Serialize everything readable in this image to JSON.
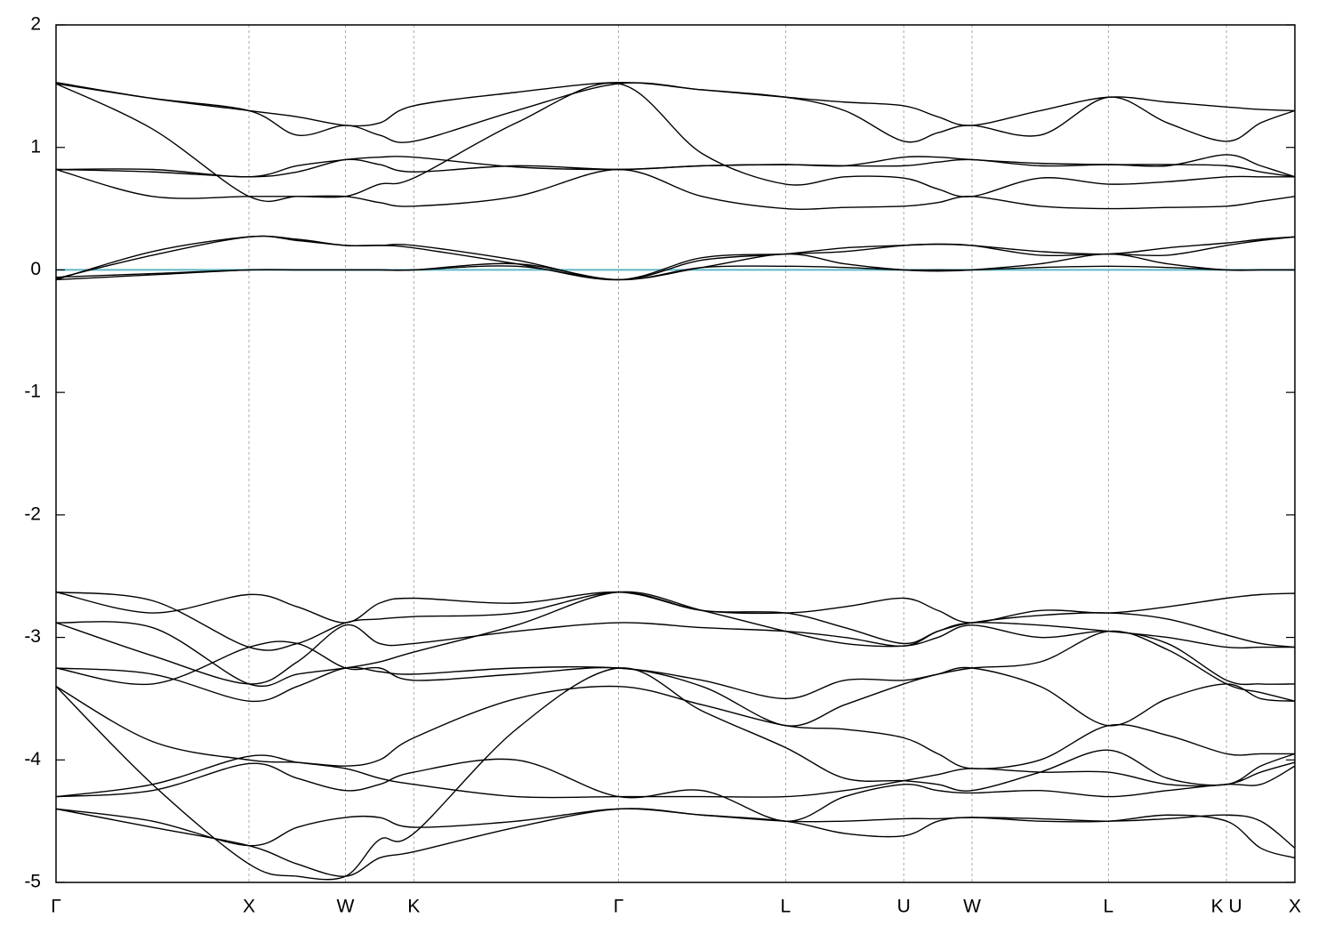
{
  "chart_data": {
    "type": "line",
    "x": [
      0,
      0.5,
      1,
      1.25,
      1.5,
      1.677,
      1.854,
      2.385,
      2.915,
      3.348,
      3.781,
      4.087,
      4.393,
      4.57,
      4.747,
      5.1,
      5.454,
      5.76,
      6.066,
      6.243,
      6.42
    ],
    "xlim": [
      0,
      6.42
    ],
    "xticks": [
      {
        "value": 0,
        "label": "Γ"
      },
      {
        "value": 1,
        "label": "X"
      },
      {
        "value": 1.5,
        "label": "W"
      },
      {
        "value": 1.854,
        "label": "K"
      },
      {
        "value": 2.915,
        "label": "Γ"
      },
      {
        "value": 3.781,
        "label": "L"
      },
      {
        "value": 4.393,
        "label": "U"
      },
      {
        "value": 4.747,
        "label": "W"
      },
      {
        "value": 5.454,
        "label": "L"
      },
      {
        "value": 6.066,
        "label": "K U"
      },
      {
        "value": 6.42,
        "label": "X"
      }
    ],
    "ylim": [
      -5,
      2
    ],
    "yticks": [
      -5,
      -4,
      -3,
      -2,
      -1,
      0,
      1,
      2
    ],
    "x_grid": true,
    "color": "#000000",
    "fermi_level": 0,
    "fermi_color": "#5fb8c8",
    "series": [
      {
        "values": [
          1.53,
          1.4,
          1.3,
          1.25,
          1.18,
          1.2,
          1.34,
          1.45,
          1.53,
          1.47,
          1.41,
          1.37,
          1.34,
          1.25,
          1.18,
          1.3,
          1.41,
          1.37,
          1.33,
          1.31,
          1.3
        ]
      },
      {
        "values": [
          1.52,
          1.15,
          0.6,
          0.6,
          0.6,
          0.7,
          0.75,
          1.2,
          1.52,
          0.95,
          0.7,
          0.76,
          0.75,
          0.66,
          0.6,
          0.75,
          0.7,
          0.72,
          0.76,
          0.76,
          0.76
        ]
      },
      {
        "values": [
          1.52,
          1.4,
          1.3,
          1.1,
          1.18,
          1.1,
          1.05,
          1.3,
          1.52,
          1.47,
          1.41,
          1.3,
          1.05,
          1.12,
          1.18,
          1.1,
          1.41,
          1.2,
          1.05,
          1.2,
          1.3
        ]
      },
      {
        "values": [
          0.82,
          0.82,
          0.76,
          0.85,
          0.9,
          0.92,
          0.92,
          0.84,
          0.82,
          0.85,
          0.86,
          0.85,
          0.92,
          0.92,
          0.9,
          0.87,
          0.86,
          0.86,
          0.85,
          0.8,
          0.76
        ]
      },
      {
        "values": [
          0.82,
          0.8,
          0.76,
          0.8,
          0.9,
          0.86,
          0.8,
          0.85,
          0.82,
          0.85,
          0.86,
          0.85,
          0.85,
          0.88,
          0.9,
          0.85,
          0.86,
          0.85,
          0.94,
          0.85,
          0.76
        ]
      },
      {
        "values": [
          0.82,
          0.6,
          0.6,
          0.6,
          0.6,
          0.55,
          0.52,
          0.6,
          0.82,
          0.6,
          0.5,
          0.51,
          0.52,
          0.55,
          0.6,
          0.52,
          0.5,
          0.51,
          0.52,
          0.56,
          0.6
        ]
      },
      {
        "values": [
          -0.08,
          0.15,
          0.27,
          0.25,
          0.2,
          0.2,
          0.2,
          0.08,
          -0.08,
          0.08,
          0.13,
          0.18,
          0.2,
          0.21,
          0.2,
          0.15,
          0.13,
          0.18,
          0.22,
          0.25,
          0.27
        ]
      },
      {
        "values": [
          -0.07,
          0.12,
          0.27,
          0.24,
          0.2,
          0.2,
          0.18,
          0.05,
          -0.08,
          0.1,
          0.13,
          0.15,
          0.2,
          0.21,
          0.2,
          0.12,
          0.13,
          0.12,
          0.2,
          0.24,
          0.27
        ]
      },
      {
        "values": [
          -0.08,
          -0.04,
          0,
          0,
          0,
          0,
          0,
          0.05,
          -0.08,
          0.02,
          0.03,
          0.02,
          0,
          0,
          0,
          0.02,
          0.03,
          0.02,
          0,
          0,
          0
        ]
      },
      {
        "values": [
          -0.06,
          -0.03,
          0,
          0,
          0,
          0,
          0,
          0.03,
          -0.08,
          0.02,
          0.13,
          0.05,
          0,
          -0.01,
          0,
          0.05,
          0.13,
          0.05,
          0,
          0,
          0
        ]
      },
      {
        "values": [
          -2.63,
          -2.8,
          -2.65,
          -2.75,
          -2.88,
          -2.72,
          -2.68,
          -2.72,
          -2.63,
          -2.78,
          -2.8,
          -2.75,
          -2.68,
          -2.78,
          -2.88,
          -2.78,
          -2.8,
          -2.75,
          -2.68,
          -2.65,
          -2.64
        ]
      },
      {
        "values": [
          -2.63,
          -2.7,
          -3.08,
          -3.05,
          -2.88,
          -2.85,
          -2.83,
          -2.8,
          -2.63,
          -2.78,
          -2.8,
          -2.92,
          -3.05,
          -2.95,
          -2.88,
          -2.82,
          -2.8,
          -2.85,
          -2.98,
          -3.05,
          -3.08
        ]
      },
      {
        "values": [
          -2.88,
          -3.15,
          -3.38,
          -3.2,
          -2.9,
          -3.05,
          -3.05,
          -2.95,
          -2.88,
          -2.92,
          -2.95,
          -3.0,
          -3.07,
          -2.95,
          -2.88,
          -2.9,
          -2.95,
          -3.0,
          -3.08,
          -3.08,
          -3.08
        ]
      },
      {
        "values": [
          -2.88,
          -2.92,
          -3.38,
          -3.3,
          -3.25,
          -3.2,
          -3.12,
          -2.9,
          -2.63,
          -2.78,
          -2.95,
          -3.05,
          -3.07,
          -3.0,
          -2.9,
          -3.0,
          -2.95,
          -3.05,
          -3.35,
          -3.38,
          -3.38
        ]
      },
      {
        "values": [
          -3.25,
          -3.3,
          -3.52,
          -3.4,
          -3.25,
          -3.28,
          -3.3,
          -3.25,
          -3.25,
          -3.35,
          -3.5,
          -3.35,
          -3.35,
          -3.3,
          -3.25,
          -3.2,
          -2.95,
          -3.1,
          -3.38,
          -3.45,
          -3.52
        ]
      },
      {
        "values": [
          -3.25,
          -3.38,
          -3.08,
          -3.05,
          -3.25,
          -3.25,
          -3.35,
          -3.3,
          -3.25,
          -3.4,
          -3.72,
          -3.55,
          -3.38,
          -3.3,
          -3.25,
          -3.4,
          -3.72,
          -3.5,
          -3.38,
          -3.5,
          -3.52
        ]
      },
      {
        "values": [
          -3.4,
          -3.85,
          -4.0,
          -4.02,
          -4.05,
          -4.0,
          -3.82,
          -3.5,
          -3.4,
          -3.55,
          -3.72,
          -3.75,
          -3.82,
          -3.95,
          -4.07,
          -4.0,
          -3.72,
          -3.8,
          -3.95,
          -3.95,
          -3.95
        ]
      },
      {
        "values": [
          -3.4,
          -4.2,
          -4.85,
          -4.95,
          -4.95,
          -4.65,
          -4.6,
          -3.75,
          -3.25,
          -3.6,
          -3.9,
          -4.15,
          -4.17,
          -4.2,
          -4.25,
          -4.1,
          -3.92,
          -4.15,
          -4.2,
          -4.05,
          -3.95
        ]
      },
      {
        "values": [
          -4.3,
          -4.2,
          -3.97,
          -4.02,
          -4.07,
          -4.15,
          -4.2,
          -4.3,
          -4.3,
          -4.3,
          -4.3,
          -4.25,
          -4.17,
          -4.12,
          -4.07,
          -4.1,
          -4.1,
          -4.2,
          -4.2,
          -4.1,
          -4.02
        ]
      },
      {
        "values": [
          -4.3,
          -4.25,
          -4.03,
          -4.15,
          -4.25,
          -4.2,
          -4.1,
          -4.0,
          -4.3,
          -4.25,
          -4.5,
          -4.3,
          -4.2,
          -4.25,
          -4.27,
          -4.25,
          -4.3,
          -4.25,
          -4.2,
          -4.2,
          -4.05
        ]
      },
      {
        "values": [
          -4.4,
          -4.5,
          -4.7,
          -4.55,
          -4.47,
          -4.47,
          -4.55,
          -4.5,
          -4.4,
          -4.45,
          -4.5,
          -4.5,
          -4.48,
          -4.48,
          -4.47,
          -4.48,
          -4.5,
          -4.48,
          -4.45,
          -4.5,
          -4.72
        ]
      },
      {
        "values": [
          -4.4,
          -4.55,
          -4.7,
          -4.85,
          -4.95,
          -4.8,
          -4.75,
          -4.55,
          -4.4,
          -4.45,
          -4.5,
          -4.6,
          -4.62,
          -4.5,
          -4.47,
          -4.5,
          -4.5,
          -4.45,
          -4.5,
          -4.72,
          -4.8
        ]
      }
    ]
  }
}
